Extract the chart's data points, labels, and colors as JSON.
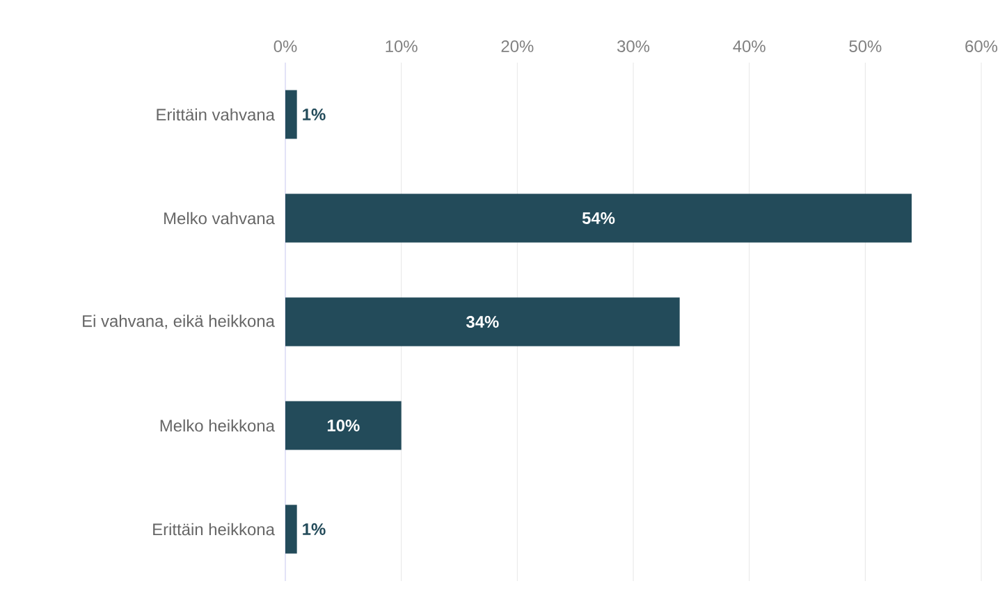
{
  "chart_data": {
    "type": "bar",
    "orientation": "horizontal",
    "categories": [
      "Erittäin vahvana",
      "Melko vahvana",
      "Ei vahvana, eikä heikkona",
      "Melko heikkona",
      "Erittäin heikkona"
    ],
    "values": [
      1,
      54,
      34,
      10,
      1
    ],
    "value_labels": [
      "1%",
      "54%",
      "34%",
      "10%",
      "1%"
    ],
    "color": "#234b5a",
    "xlim": [
      0,
      60
    ],
    "xticks": [
      {
        "value": 0,
        "label": "0%"
      },
      {
        "value": 10,
        "label": "10%"
      },
      {
        "value": 20,
        "label": "20%"
      },
      {
        "value": 30,
        "label": "30%"
      },
      {
        "value": 40,
        "label": "40%"
      },
      {
        "value": 50,
        "label": "50%"
      },
      {
        "value": 60,
        "label": "60%"
      }
    ],
    "grid": "x"
  }
}
